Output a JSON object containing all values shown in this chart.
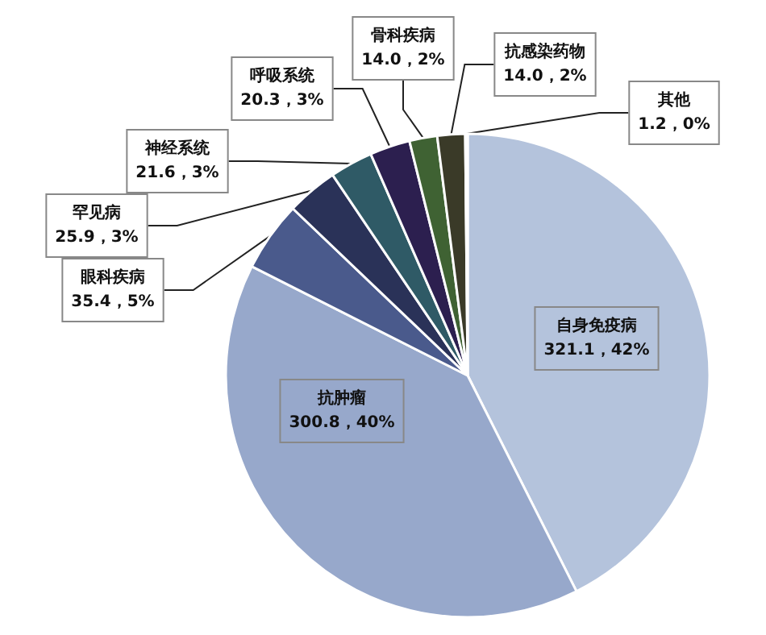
{
  "chart_data": {
    "type": "pie",
    "categories": [
      "自身免疫病",
      "抗肿瘤",
      "眼科疾病",
      "罕见病",
      "神经系统",
      "呼吸系统",
      "骨科疾病",
      "抗感染药物",
      "其他"
    ],
    "values": [
      321.1,
      300.8,
      35.4,
      25.9,
      21.6,
      20.3,
      14.0,
      14.0,
      1.2
    ],
    "value_labels": [
      "321.1，42%",
      "300.8，40%",
      "35.4，5%",
      "25.9，3%",
      "21.6，3%",
      "20.3，3%",
      "14.0，2%",
      "14.0，2%",
      "1.2，0%"
    ],
    "colors": [
      "#b4c3dc",
      "#97a8cb",
      "#4a5a8c",
      "#2a3258",
      "#2f5a66",
      "#2c1f4f",
      "#3f6233",
      "#3a3a28",
      "#d8d8c8"
    ],
    "legend": false
  }
}
